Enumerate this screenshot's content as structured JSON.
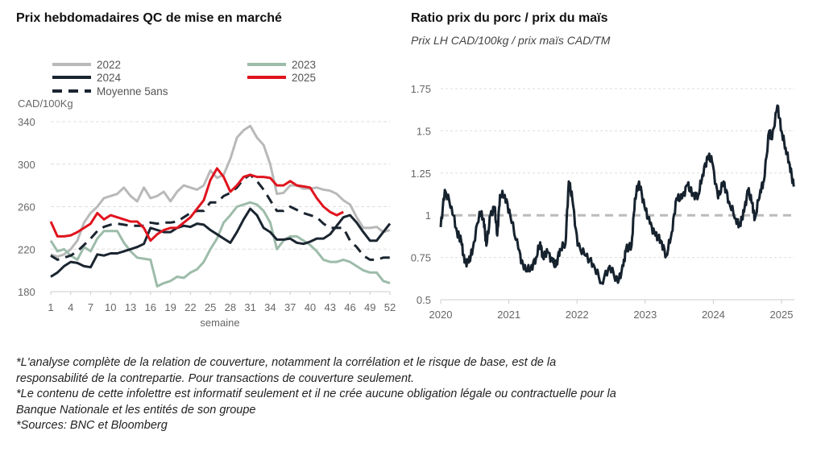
{
  "chart_data": [
    {
      "type": "line",
      "title": "Prix hebdomadaires QC de mise en marché",
      "ylabel": "CAD/100Kg",
      "xlabel": "semaine",
      "ylim": [
        180,
        340
      ],
      "yticks": [
        180,
        220,
        260,
        300,
        340
      ],
      "xticks": [
        1,
        4,
        7,
        10,
        13,
        16,
        19,
        22,
        25,
        28,
        31,
        34,
        37,
        40,
        43,
        46,
        49,
        52
      ],
      "grid": "horizontal dashed",
      "legend_position": "top",
      "series": [
        {
          "name": "2022",
          "color": "#b9b9b9",
          "dash": false,
          "values": [
            215,
            213,
            215,
            220,
            228,
            245,
            254,
            260,
            268,
            270,
            272,
            278,
            270,
            265,
            278,
            268,
            270,
            274,
            265,
            274,
            280,
            278,
            276,
            280,
            294,
            287,
            290,
            305,
            325,
            332,
            336,
            325,
            318,
            300,
            272,
            273,
            280,
            280,
            277,
            277,
            278,
            276,
            275,
            272,
            266,
            262,
            250,
            240,
            240,
            241,
            236,
            238
          ]
        },
        {
          "name": "2023",
          "color": "#9dbcaa",
          "dash": false,
          "values": [
            228,
            218,
            220,
            214,
            210,
            222,
            218,
            230,
            237,
            237,
            237,
            226,
            218,
            212,
            211,
            210,
            185,
            188,
            190,
            194,
            193,
            198,
            201,
            208,
            220,
            230,
            245,
            252,
            260,
            262,
            264,
            262,
            256,
            245,
            220,
            228,
            232,
            232,
            228,
            224,
            218,
            210,
            208,
            208,
            210,
            208,
            204,
            200,
            198,
            198,
            190,
            188
          ]
        },
        {
          "name": "2024",
          "color": "#1a2530",
          "dash": false,
          "values": [
            194,
            198,
            204,
            208,
            207,
            204,
            203,
            215,
            214,
            216,
            216,
            218,
            220,
            222,
            225,
            240,
            238,
            236,
            236,
            240,
            242,
            241,
            244,
            243,
            238,
            234,
            230,
            226,
            236,
            248,
            258,
            252,
            240,
            236,
            229,
            229,
            230,
            226,
            225,
            227,
            230,
            230,
            234,
            242,
            250,
            252,
            245,
            236,
            228,
            228,
            236,
            244
          ]
        },
        {
          "name": "2025",
          "color": "#e0141e",
          "dash": false,
          "values": [
            246,
            232,
            232,
            233,
            236,
            240,
            244,
            254,
            248,
            252,
            250,
            248,
            246,
            246,
            240,
            228,
            234,
            238,
            240,
            240,
            245,
            250,
            258,
            266,
            285,
            296,
            288,
            274,
            280,
            288,
            290,
            288,
            288,
            287,
            280,
            280,
            284,
            280,
            279,
            278,
            268,
            260,
            255,
            252,
            255
          ]
        },
        {
          "name": "Moyenne 5ans",
          "color": "#1a2530",
          "dash": true,
          "values": [
            214,
            210,
            212,
            214,
            218,
            224,
            230,
            237,
            241,
            243,
            244,
            243,
            242,
            242,
            242,
            245,
            244,
            245,
            245,
            246,
            250,
            254,
            256,
            256,
            264,
            264,
            270,
            273,
            278,
            286,
            290,
            284,
            276,
            266,
            256,
            256,
            260,
            257,
            254,
            252,
            250,
            244,
            240,
            240,
            240,
            228,
            222,
            214,
            210,
            210,
            212,
            212
          ]
        }
      ]
    },
    {
      "type": "line",
      "title": "Ratio prix du porc / prix du maïs",
      "subtitle": "Prix LH CAD/100kg / prix maïs CAD/TM",
      "ylim": [
        0.5,
        1.75
      ],
      "yticks": [
        "0.5",
        "0.75",
        "1",
        "1.25",
        "1.5",
        "1.75"
      ],
      "xticks": [
        "2020",
        "2021",
        "2022",
        "2023",
        "2024",
        "2025"
      ],
      "xlim": [
        2020,
        2025.18
      ],
      "reference_line": 1,
      "grid": "horizontal dashed",
      "series": [
        {
          "name": "Ratio",
          "color": "#16222e",
          "points": [
            [
              2020.0,
              0.93
            ],
            [
              2020.06,
              1.15
            ],
            [
              2020.16,
              1.05
            ],
            [
              2020.24,
              0.9
            ],
            [
              2020.3,
              0.85
            ],
            [
              2020.35,
              0.72
            ],
            [
              2020.41,
              0.72
            ],
            [
              2020.47,
              0.8
            ],
            [
              2020.57,
              1.02
            ],
            [
              2020.63,
              0.98
            ],
            [
              2020.67,
              0.82
            ],
            [
              2020.73,
              1.0
            ],
            [
              2020.79,
              1.05
            ],
            [
              2020.83,
              0.88
            ],
            [
              2020.87,
              1.12
            ],
            [
              2020.94,
              1.12
            ],
            [
              2021.02,
              1.0
            ],
            [
              2021.14,
              0.8
            ],
            [
              2021.22,
              0.68
            ],
            [
              2021.32,
              0.68
            ],
            [
              2021.4,
              0.75
            ],
            [
              2021.46,
              0.84
            ],
            [
              2021.5,
              0.75
            ],
            [
              2021.57,
              0.78
            ],
            [
              2021.65,
              0.72
            ],
            [
              2021.69,
              0.7
            ],
            [
              2021.75,
              0.8
            ],
            [
              2021.83,
              0.83
            ],
            [
              2021.88,
              1.2
            ],
            [
              2021.93,
              1.1
            ],
            [
              2022.01,
              0.82
            ],
            [
              2022.13,
              0.76
            ],
            [
              2022.24,
              0.71
            ],
            [
              2022.36,
              0.6
            ],
            [
              2022.48,
              0.7
            ],
            [
              2022.6,
              0.6
            ],
            [
              2022.68,
              0.7
            ],
            [
              2022.72,
              0.8
            ],
            [
              2022.8,
              0.82
            ],
            [
              2022.85,
              1.1
            ],
            [
              2022.91,
              1.2
            ],
            [
              2022.99,
              1.05
            ],
            [
              2023.07,
              0.95
            ],
            [
              2023.15,
              0.88
            ],
            [
              2023.23,
              0.85
            ],
            [
              2023.31,
              0.76
            ],
            [
              2023.39,
              0.9
            ],
            [
              2023.46,
              1.1
            ],
            [
              2023.54,
              1.1
            ],
            [
              2023.62,
              1.18
            ],
            [
              2023.7,
              1.12
            ],
            [
              2023.78,
              1.12
            ],
            [
              2023.84,
              1.24
            ],
            [
              2023.92,
              1.35
            ],
            [
              2023.98,
              1.32
            ],
            [
              2024.07,
              1.1
            ],
            [
              2024.15,
              1.2
            ],
            [
              2024.23,
              1.08
            ],
            [
              2024.33,
              0.98
            ],
            [
              2024.39,
              0.94
            ],
            [
              2024.45,
              1.02
            ],
            [
              2024.51,
              1.15
            ],
            [
              2024.57,
              1.07
            ],
            [
              2024.61,
              0.98
            ],
            [
              2024.69,
              1.15
            ],
            [
              2024.74,
              1.2
            ],
            [
              2024.82,
              1.5
            ],
            [
              2024.86,
              1.45
            ],
            [
              2024.94,
              1.65
            ],
            [
              2025.0,
              1.5
            ],
            [
              2025.06,
              1.4
            ],
            [
              2025.12,
              1.3
            ],
            [
              2025.18,
              1.17
            ]
          ]
        }
      ]
    }
  ],
  "footnotes": [
    "*L'analyse complète de la relation de couverture, notamment la corrélation et le risque de base, est de la",
    "responsabilité de la contrepartie. Pour transactions de couverture seulement.",
    "*Le contenu de cette infolettre est informatif seulement et il ne crée aucune obligation légale ou contractuelle pour la",
    "Banque Nationale et les entités de son groupe",
    "*Sources: BNC et Bloomberg"
  ]
}
